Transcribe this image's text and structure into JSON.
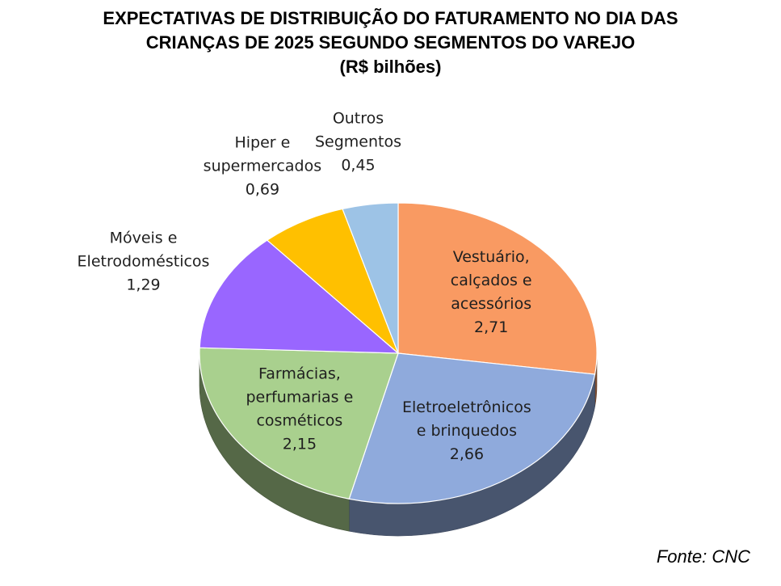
{
  "chart_data": {
    "type": "pie",
    "title": [
      "EXPECTATIVAS DE DISTRIBUIÇÃO DO FATURAMENTO NO DIA DAS",
      "CRIANÇAS DE 2025 SEGUNDO SEGMENTOS DO VAREJO",
      "(R$ bilhões)"
    ],
    "slices": [
      {
        "label": [
          "Vestuário,",
          "calçados e",
          "acessórios"
        ],
        "value": 2.71,
        "value_label": "2,71",
        "color": "#F99A62"
      },
      {
        "label": [
          "Eletroeletrônicos",
          "e brinquedos"
        ],
        "value": 2.66,
        "value_label": "2,66",
        "color": "#8FAADC"
      },
      {
        "label": [
          "Farmácias,",
          "perfumarias e",
          "cosméticos"
        ],
        "value": 2.15,
        "value_label": "2,15",
        "color": "#A9D08E"
      },
      {
        "label": [
          "Móveis e",
          "Eletrodomésticos"
        ],
        "value": 1.29,
        "value_label": "1,29",
        "color": "#9966FF"
      },
      {
        "label": [
          "Hiper e",
          "supermercados"
        ],
        "value": 0.69,
        "value_label": "0,69",
        "color": "#FFC000"
      },
      {
        "label": [
          "Outros",
          "Segmentos"
        ],
        "value": 0.45,
        "value_label": "0,45",
        "color": "#9DC3E6"
      }
    ],
    "source": "Fonte: CNC"
  }
}
